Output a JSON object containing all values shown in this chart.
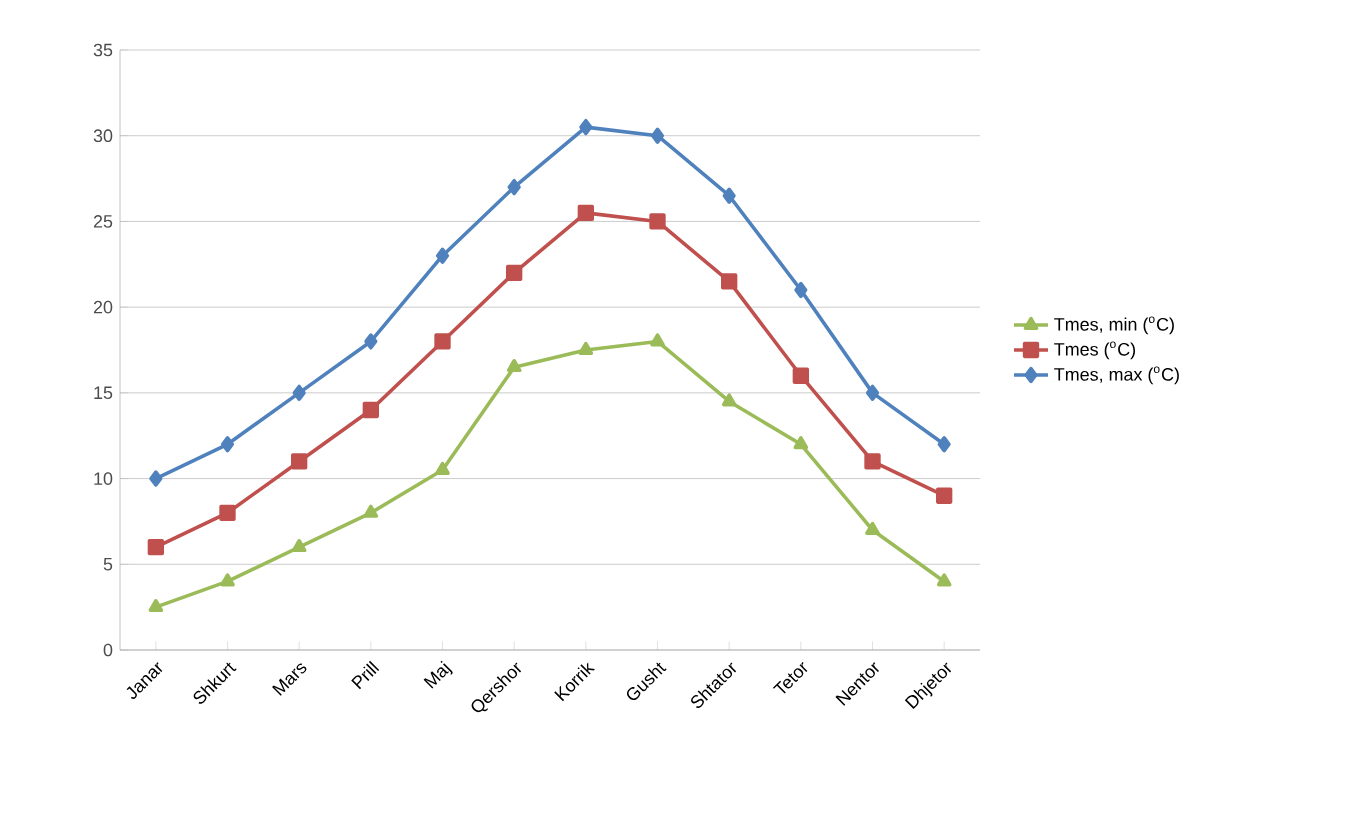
{
  "chart_data": {
    "type": "line",
    "categories": [
      "Janar",
      "Shkurt",
      "Mars",
      "Prill",
      "Maj",
      "Qershor",
      "Korrik",
      "Gusht",
      "Shtator",
      "Tetor",
      "Nentor",
      "Dhjetor"
    ],
    "series": [
      {
        "name": "Tmes, min ($^{o}$C)",
        "color": "#9bbb59",
        "marker": "triangle",
        "values": [
          2.5,
          4,
          6,
          8,
          10.5,
          16.5,
          17.5,
          18,
          14.5,
          12,
          7,
          4
        ]
      },
      {
        "name": "Tmes ($^{o}$C)",
        "color": "#c0504d",
        "marker": "square",
        "values": [
          6,
          8,
          11,
          14,
          18,
          22,
          25.5,
          25,
          21.5,
          16,
          11,
          9
        ]
      },
      {
        "name": "Tmes, max ($^{o}$C)",
        "color": "#4f81bd",
        "marker": "diamond",
        "values": [
          10,
          12,
          15,
          18,
          23,
          27,
          30.5,
          30,
          26.5,
          21,
          15,
          12
        ]
      }
    ],
    "ylim": [
      0,
      35
    ],
    "yticks": [
      0,
      5,
      10,
      15,
      20,
      25,
      30,
      35
    ],
    "grid": "y",
    "legend": "right",
    "line_style": "solid"
  }
}
